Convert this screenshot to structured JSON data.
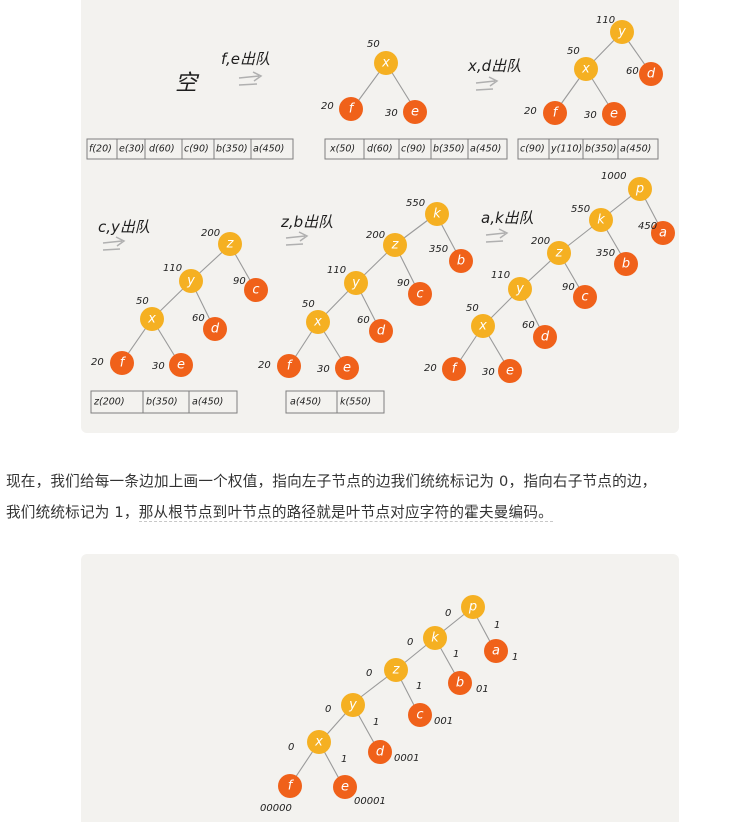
{
  "panel1": {
    "step1": {
      "empty_label": "空",
      "action": "f,e出队",
      "queue": [
        "f(20)",
        "e(30)",
        "d(60)",
        "c(90)",
        "b(350)",
        "a(450)"
      ]
    },
    "step2": {
      "action": "x,d出队",
      "queue": [
        "x(50)",
        "d(60)",
        "c(90)",
        "b(350)",
        "a(450)"
      ],
      "weights": {
        "x": "50",
        "f": "20",
        "e": "30"
      },
      "nodes": {
        "x": "x",
        "f": "f",
        "e": "e"
      }
    },
    "step3": {
      "queue": [
        "c(90)",
        "y(110)",
        "b(350)",
        "a(450)"
      ],
      "weights": {
        "y": "110",
        "x": "50",
        "d": "60",
        "f": "20",
        "e": "30"
      },
      "nodes": {
        "y": "y",
        "x": "x",
        "d": "d",
        "f": "f",
        "e": "e"
      }
    },
    "step4": {
      "action": "c,y出队",
      "queue": [
        "z(200)",
        "b(350)",
        "a(450)"
      ],
      "weights": {
        "z": "200",
        "y": "110",
        "c": "90",
        "x": "50",
        "d": "60",
        "f": "20",
        "e": "30"
      },
      "nodes": {
        "z": "z",
        "y": "y",
        "c": "c",
        "x": "x",
        "d": "d",
        "f": "f",
        "e": "e"
      }
    },
    "step5": {
      "action": "z,b出队",
      "queue": [
        "a(450)",
        "k(550)"
      ],
      "weights": {
        "k": "550",
        "z": "200",
        "b": "350",
        "y": "110",
        "c": "90",
        "x": "50",
        "d": "60",
        "f": "20",
        "e": "30"
      },
      "nodes": {
        "k": "k",
        "z": "z",
        "b": "b",
        "y": "y",
        "c": "c",
        "x": "x",
        "d": "d",
        "f": "f",
        "e": "e"
      }
    },
    "step6": {
      "action": "a,k出队",
      "weights": {
        "p": "1000",
        "k": "550",
        "a": "450",
        "z": "200",
        "b": "350",
        "y": "110",
        "c": "90",
        "x": "50",
        "d": "60",
        "f": "20",
        "e": "30"
      },
      "nodes": {
        "p": "p",
        "k": "k",
        "a": "a",
        "z": "z",
        "b": "b",
        "y": "y",
        "c": "c",
        "x": "x",
        "d": "d",
        "f": "f",
        "e": "e"
      }
    }
  },
  "paragraph": {
    "line1": "现在，我们给每一条边加上画一个权值，指向左子节点的边我们统统标记为 0，指向右子节点的边，",
    "line2a": "我们统统标记为 1，",
    "line2b": "那从根节点到叶节点的路径就是叶节点对应字符的霍夫曼编码。"
  },
  "panel2": {
    "nodes": {
      "p": "p",
      "k": "k",
      "a": "a",
      "z": "z",
      "b": "b",
      "y": "y",
      "c": "c",
      "x": "x",
      "d": "d",
      "f": "f",
      "e": "e"
    },
    "edge_bits": {
      "pk": "0",
      "pa": "1",
      "kz": "0",
      "kb": "1",
      "zy": "0",
      "zc": "1",
      "yx": "0",
      "yd": "1",
      "xf": "0",
      "xe": "1"
    },
    "codes": {
      "a": "1",
      "b": "01",
      "c": "001",
      "d": "0001",
      "f": "00000",
      "e": "00001"
    }
  },
  "colors": {
    "internal_node": "#f5b022",
    "leaf_node": "#f0611a",
    "panel_bg": "#f3f2ef"
  }
}
